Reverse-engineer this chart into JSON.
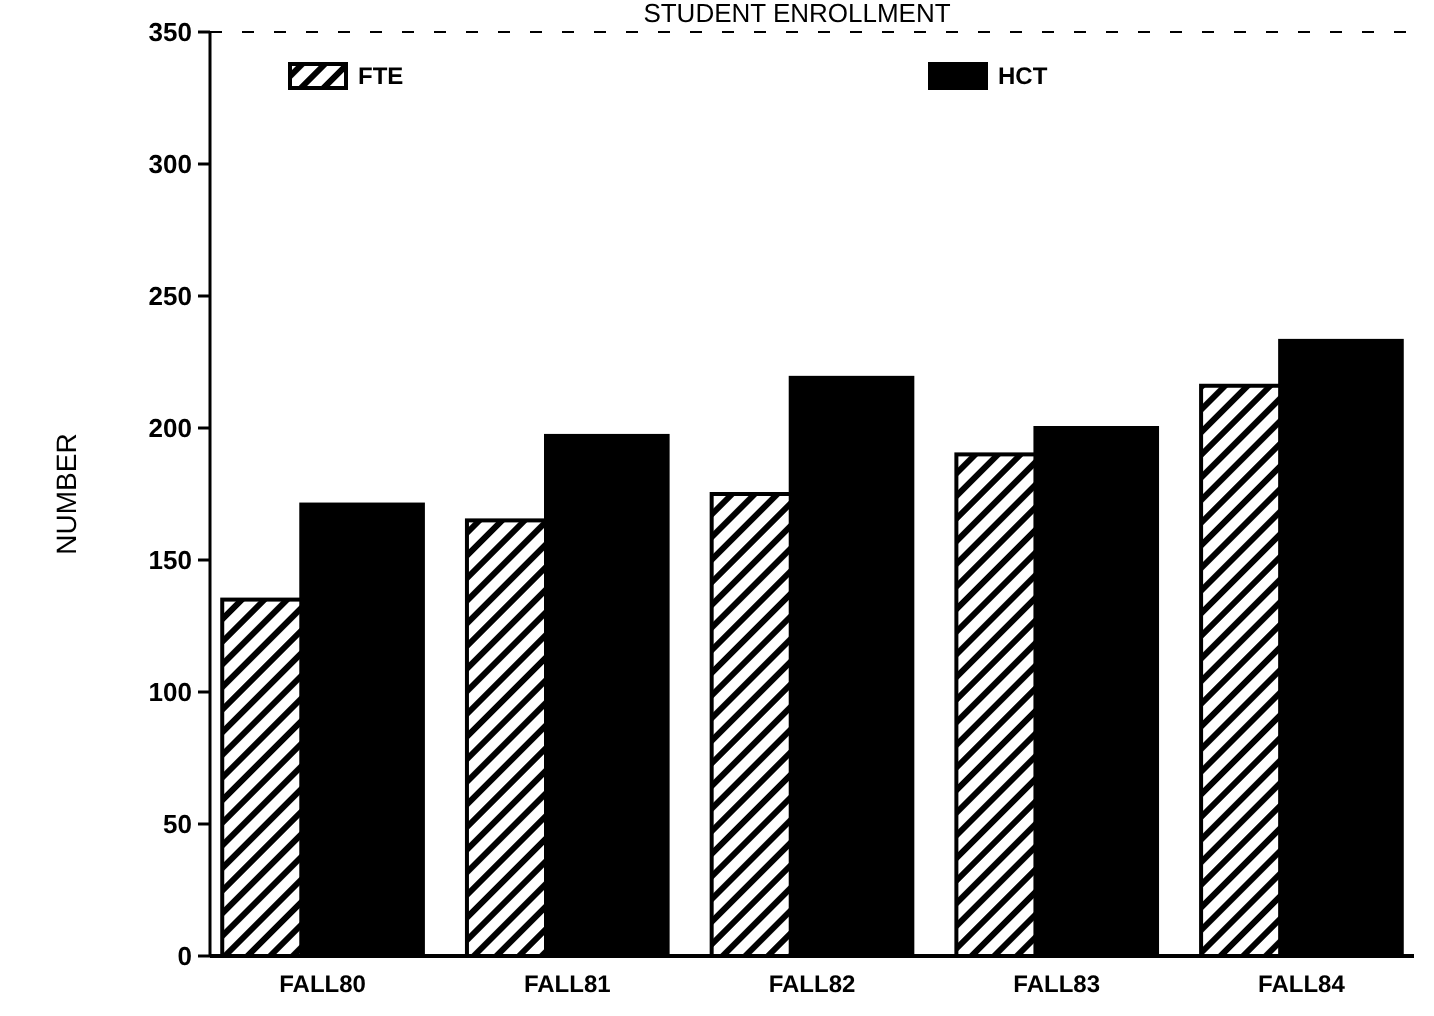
{
  "chart_data": {
    "type": "bar",
    "title": "STUDENT ENROLLMENT",
    "ylabel": "NUMBER",
    "categories": [
      "FALL80",
      "FALL81",
      "FALL82",
      "FALL83",
      "FALL84"
    ],
    "series": [
      {
        "name": "FTE",
        "color": "#000000",
        "values": [
          135,
          165,
          175,
          190,
          216
        ]
      },
      {
        "name": "HCT",
        "color": "#000000",
        "values": [
          171,
          197,
          219,
          200,
          233
        ]
      }
    ],
    "ylim": [
      0,
      350
    ],
    "yticks": [
      0,
      50,
      100,
      150,
      200,
      250,
      300,
      350
    ],
    "legend": "top",
    "grid": false
  }
}
